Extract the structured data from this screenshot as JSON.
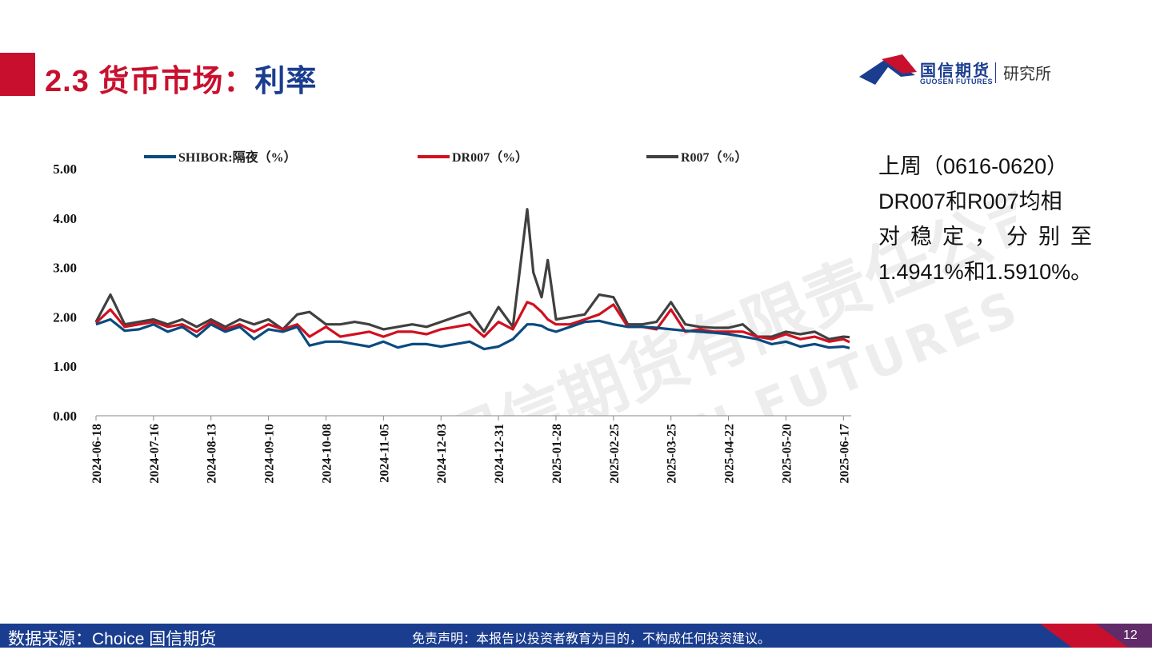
{
  "header": {
    "title_main": "2.3 货币市场",
    "title_sep": "：",
    "title_sub": "利率",
    "logo_cn": "国信期货",
    "logo_en": "GUOSEN FUTURES",
    "logo_inst": "研究所"
  },
  "watermark": {
    "cn": "国信期货有限责任公司",
    "en": "GUOSEN FUTURES CO.,LTD."
  },
  "side_text": {
    "line1": "上周（0616-0620）",
    "line2": "DR007和R007均相",
    "line3": "对稳定，分别至",
    "line4": "1.4941%和1.5910%。"
  },
  "footer": {
    "source": "数据来源：Choice  国信期货",
    "disclaimer": "免责声明：本报告以投资者教育为目的，不构成任何投资建议。",
    "page": "12"
  },
  "colors": {
    "brand_red": "#c8102e",
    "brand_blue": "#1a3d8f",
    "shibor": "#0b4a7d",
    "dr007": "#d0101f",
    "r007": "#404040"
  },
  "chart_data": {
    "type": "line",
    "ylim": [
      0,
      5
    ],
    "yticks": [
      "0.00",
      "1.00",
      "2.00",
      "3.00",
      "4.00",
      "5.00"
    ],
    "xlabels": [
      "2024-06-18",
      "2024-07-16",
      "2024-08-13",
      "2024-09-10",
      "2024-10-08",
      "2024-11-05",
      "2024-12-03",
      "2024-12-31",
      "2025-01-28",
      "2025-02-25",
      "2025-03-25",
      "2025-04-22",
      "2025-05-20",
      "2025-06-17"
    ],
    "grid": false,
    "legend_position": "top",
    "x": [
      "2024-06-18",
      "2024-06-25",
      "2024-07-02",
      "2024-07-09",
      "2024-07-16",
      "2024-07-23",
      "2024-07-30",
      "2024-08-06",
      "2024-08-13",
      "2024-08-20",
      "2024-08-27",
      "2024-09-03",
      "2024-09-10",
      "2024-09-17",
      "2024-09-24",
      "2024-09-30",
      "2024-10-08",
      "2024-10-15",
      "2024-10-22",
      "2024-10-29",
      "2024-11-05",
      "2024-11-12",
      "2024-11-19",
      "2024-11-26",
      "2024-12-03",
      "2024-12-10",
      "2024-12-17",
      "2024-12-24",
      "2024-12-31",
      "2025-01-07",
      "2025-01-14",
      "2025-01-17",
      "2025-01-21",
      "2025-01-24",
      "2025-01-28",
      "2025-02-04",
      "2025-02-11",
      "2025-02-18",
      "2025-02-25",
      "2025-03-04",
      "2025-03-11",
      "2025-03-18",
      "2025-03-25",
      "2025-04-01",
      "2025-04-08",
      "2025-04-15",
      "2025-04-22",
      "2025-04-29",
      "2025-05-06",
      "2025-05-13",
      "2025-05-20",
      "2025-05-27",
      "2025-06-03",
      "2025-06-10",
      "2025-06-17",
      "2025-06-20"
    ],
    "series": [
      {
        "name": "SHIBOR:隔夜（%）",
        "values": [
          1.85,
          1.95,
          1.72,
          1.75,
          1.85,
          1.7,
          1.8,
          1.6,
          1.85,
          1.7,
          1.8,
          1.55,
          1.75,
          1.7,
          1.8,
          1.42,
          1.5,
          1.5,
          1.45,
          1.4,
          1.5,
          1.38,
          1.45,
          1.45,
          1.4,
          1.45,
          1.5,
          1.35,
          1.4,
          1.55,
          1.85,
          1.85,
          1.82,
          1.75,
          1.7,
          1.8,
          1.9,
          1.92,
          1.85,
          1.8,
          1.8,
          1.78,
          1.75,
          1.72,
          1.7,
          1.68,
          1.65,
          1.6,
          1.55,
          1.45,
          1.5,
          1.4,
          1.45,
          1.38,
          1.4,
          1.37
        ]
      },
      {
        "name": "DR007（%）",
        "values": [
          1.88,
          2.15,
          1.8,
          1.85,
          1.9,
          1.8,
          1.85,
          1.7,
          1.9,
          1.75,
          1.85,
          1.7,
          1.85,
          1.75,
          1.85,
          1.6,
          1.8,
          1.6,
          1.65,
          1.7,
          1.6,
          1.7,
          1.7,
          1.65,
          1.75,
          1.8,
          1.85,
          1.6,
          1.9,
          1.75,
          2.3,
          2.25,
          2.1,
          1.95,
          1.85,
          1.85,
          1.95,
          2.05,
          2.25,
          1.8,
          1.8,
          1.75,
          2.15,
          1.7,
          1.75,
          1.7,
          1.7,
          1.7,
          1.6,
          1.55,
          1.65,
          1.55,
          1.6,
          1.5,
          1.55,
          1.49
        ]
      },
      {
        "name": "R007（%）",
        "values": [
          1.9,
          2.45,
          1.85,
          1.9,
          1.95,
          1.85,
          1.95,
          1.8,
          1.95,
          1.8,
          1.95,
          1.85,
          1.95,
          1.75,
          2.05,
          2.1,
          1.85,
          1.85,
          1.9,
          1.85,
          1.75,
          1.8,
          1.85,
          1.8,
          1.9,
          2.0,
          2.1,
          1.7,
          2.2,
          1.8,
          4.18,
          2.9,
          2.4,
          3.15,
          1.95,
          2.0,
          2.05,
          2.45,
          2.4,
          1.85,
          1.85,
          1.9,
          2.3,
          1.85,
          1.8,
          1.78,
          1.78,
          1.85,
          1.6,
          1.6,
          1.7,
          1.65,
          1.7,
          1.55,
          1.6,
          1.59
        ]
      }
    ]
  }
}
